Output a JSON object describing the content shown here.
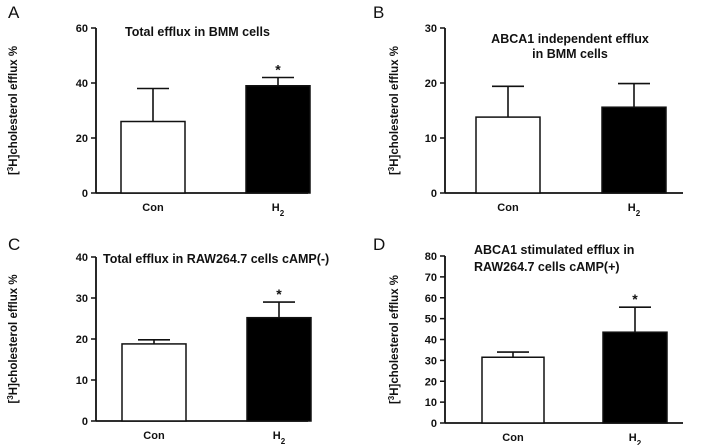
{
  "chart_data": [
    {
      "panel": "A",
      "type": "bar",
      "title_lines": [
        "Total efflux in BMM cells"
      ],
      "ylabel": "[3H]cholesterol efflux %",
      "xlabel": "",
      "categories": [
        "Con",
        "H2"
      ],
      "values": [
        26,
        39
      ],
      "errors": [
        12,
        3
      ],
      "fills": [
        "#ffffff",
        "#000000"
      ],
      "significance": [
        "",
        "*"
      ],
      "ylim": [
        0,
        60
      ],
      "yticks": [
        "0",
        "20",
        "40",
        "60"
      ]
    },
    {
      "panel": "B",
      "type": "bar",
      "title_lines": [
        "ABCA1 independent efflux",
        "in BMM cells"
      ],
      "ylabel": "[3H]cholesterol efflux %",
      "xlabel": "",
      "categories": [
        "Con",
        "H2"
      ],
      "values": [
        13.8,
        15.6
      ],
      "errors": [
        5.6,
        4.3
      ],
      "fills": [
        "#ffffff",
        "#000000"
      ],
      "significance": [
        "",
        ""
      ],
      "ylim": [
        0,
        30
      ],
      "yticks": [
        "0",
        "10",
        "20",
        "30"
      ]
    },
    {
      "panel": "C",
      "type": "bar",
      "title_lines": [
        "Total efflux in RAW264.7 cells cAMP(-)"
      ],
      "ylabel": "[3H]cholesterol efflux %",
      "xlabel": "",
      "categories": [
        "Con",
        "H2"
      ],
      "values": [
        18.8,
        25.2
      ],
      "errors": [
        1.0,
        3.8
      ],
      "fills": [
        "#ffffff",
        "#000000"
      ],
      "significance": [
        "",
        "*"
      ],
      "ylim": [
        0,
        40
      ],
      "yticks": [
        "0",
        "10",
        "20",
        "30",
        "40"
      ]
    },
    {
      "panel": "D",
      "type": "bar",
      "title_lines": [
        "ABCA1 stimulated efflux in",
        "RAW264.7 cells cAMP(+)"
      ],
      "ylabel": "[3H]cholesterol efflux %",
      "xlabel": "",
      "categories": [
        "Con",
        "H2"
      ],
      "values": [
        31.5,
        43.5
      ],
      "errors": [
        2.5,
        12
      ],
      "fills": [
        "#ffffff",
        "#000000"
      ],
      "significance": [
        "",
        "*"
      ],
      "ylim": [
        0,
        80
      ],
      "yticks": [
        "0",
        "10",
        "20",
        "30",
        "40",
        "50",
        "60",
        "70",
        "80"
      ]
    }
  ]
}
